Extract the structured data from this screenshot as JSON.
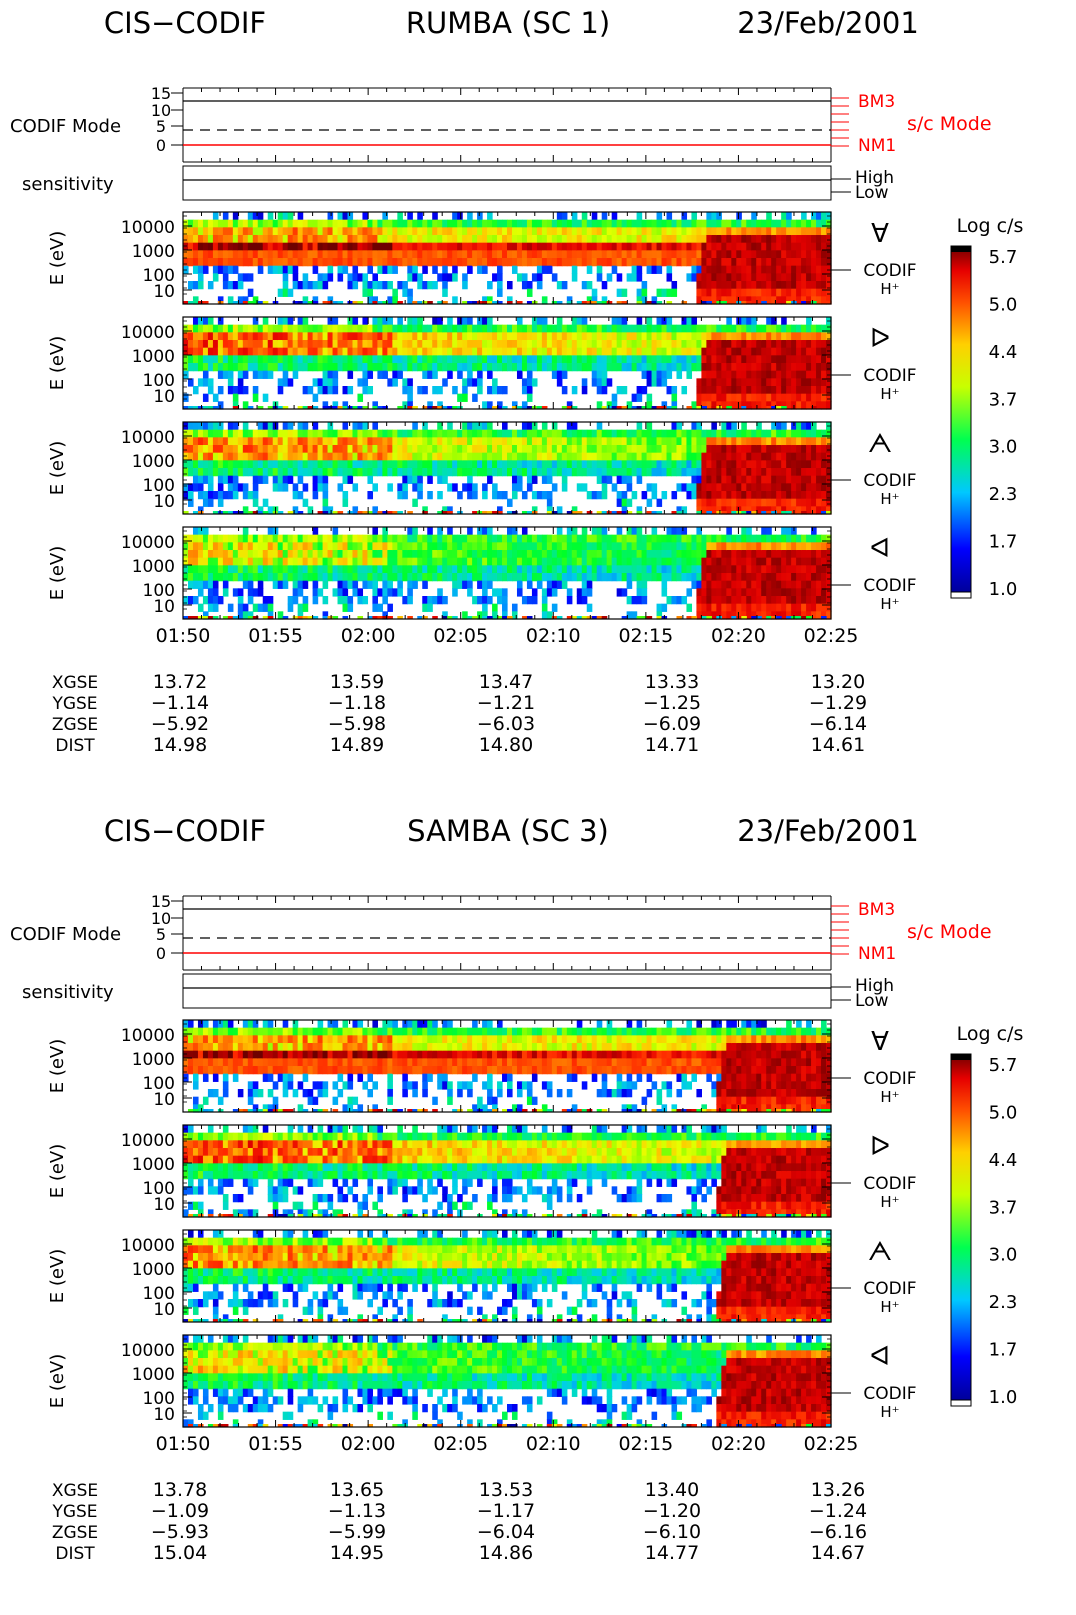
{
  "chart_data": {
    "type": "heatmap",
    "time_ticks": [
      "01:50",
      "01:55",
      "02:00",
      "02:05",
      "02:10",
      "02:15",
      "02:20",
      "02:25"
    ],
    "energy_ticks": [
      "10000",
      "1000",
      "100",
      "10"
    ],
    "mode_ticks": [
      "15",
      "10",
      "5",
      "0"
    ],
    "labels": {
      "codif_mode": "CODIF Mode",
      "sensitivity": "sensitivity",
      "high": "High",
      "low": "Low",
      "bm3": "BM3",
      "nm1": "NM1",
      "sc_mode": "s/c Mode",
      "energy_axis": "E (eV)",
      "codif": "CODIF",
      "species": "H⁺"
    },
    "colorbar": {
      "title": "Log c/s",
      "ticks": [
        "5.7",
        "5.0",
        "4.4",
        "3.7",
        "3.0",
        "2.3",
        "1.7",
        "1.0"
      ],
      "min": 1.0,
      "max": 5.7
    },
    "direction_symbols": [
      "∀",
      "ᐅ",
      "ᗅ",
      "ᐊ"
    ],
    "spacecraft": [
      {
        "instrument": "CIS−CODIF",
        "name": "RUMBA (SC 1)",
        "date": "23/Feb/2001",
        "onset_minutes": 28,
        "orbit": [
          {
            "label": "XGSE",
            "values": [
              "13.72",
              "13.59",
              "13.47",
              "13.33",
              "13.20"
            ]
          },
          {
            "label": "YGSE",
            "values": [
              "−1.14",
              "−1.18",
              "−1.21",
              "−1.25",
              "−1.29"
            ]
          },
          {
            "label": "ZGSE",
            "values": [
              "−5.92",
              "−5.98",
              "−6.03",
              "−6.09",
              "−6.14"
            ]
          },
          {
            "label": "DIST",
            "values": [
              "14.98",
              "14.89",
              "14.80",
              "14.71",
              "14.61"
            ]
          }
        ]
      },
      {
        "instrument": "CIS−CODIF",
        "name": "SAMBA (SC 3)",
        "date": "23/Feb/2001",
        "onset_minutes": 29,
        "orbit": [
          {
            "label": "XGSE",
            "values": [
              "13.78",
              "13.65",
              "13.53",
              "13.40",
              "13.26"
            ]
          },
          {
            "label": "YGSE",
            "values": [
              "−1.09",
              "−1.13",
              "−1.17",
              "−1.20",
              "−1.24"
            ]
          },
          {
            "label": "ZGSE",
            "values": [
              "−5.93",
              "−5.99",
              "−6.04",
              "−6.10",
              "−6.16"
            ]
          },
          {
            "label": "DIST",
            "values": [
              "15.04",
              "14.95",
              "14.86",
              "14.77",
              "14.67"
            ]
          }
        ]
      }
    ]
  }
}
